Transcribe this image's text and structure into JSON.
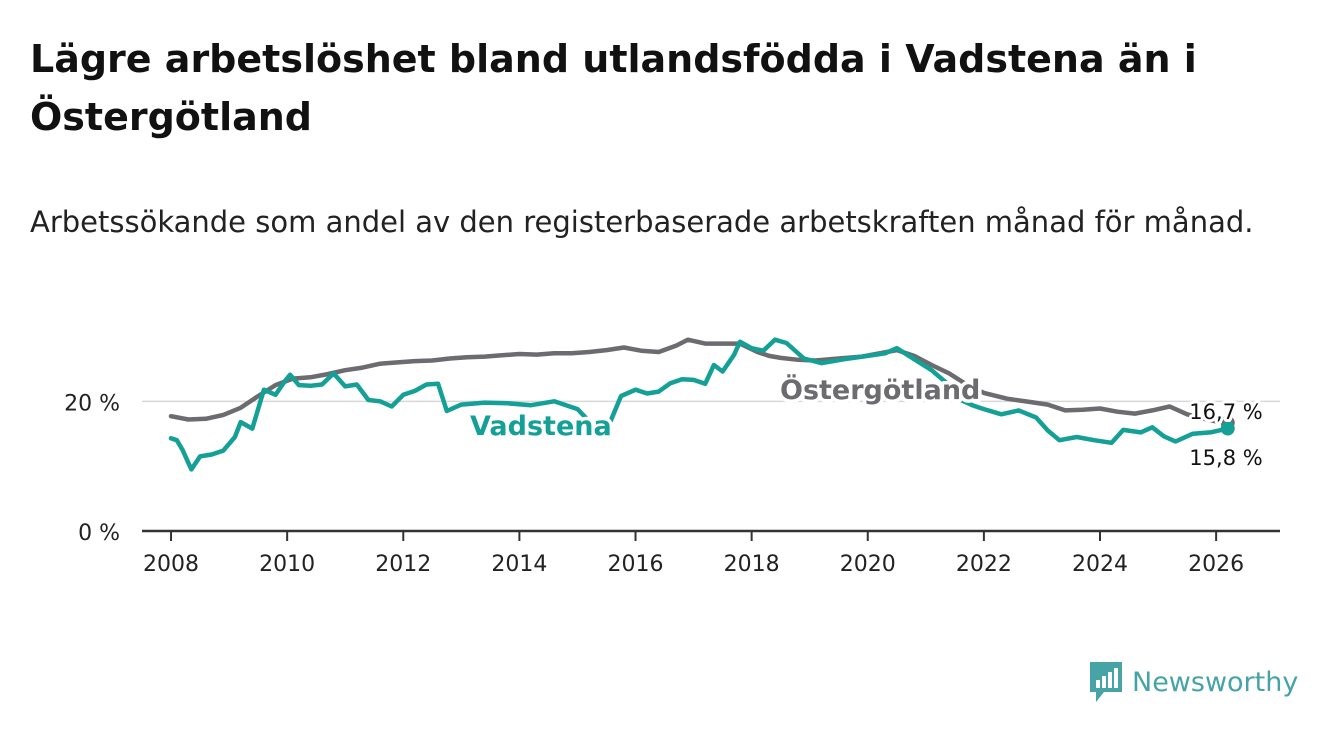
{
  "title": "Lägre arbetslöshet bland utlandsfödda i Vadstena än i Östergötland",
  "subtitle": "Arbetssökande som andel av den registerbaserade arbetskraften månad för månad.",
  "brand": {
    "name": "Newsworthy",
    "icon": "newsworthy-logo-icon"
  },
  "colors": {
    "vadstena": "#14a097",
    "ostergotland": "#6b6b70",
    "grid": "#d8d8d8",
    "axis": "#333333"
  },
  "chart_data": {
    "type": "line",
    "title": "Lägre arbetslöshet bland utlandsfödda i Vadstena än i Östergötland",
    "xlabel": "",
    "ylabel": "",
    "xlim": [
      2007.5,
      2027.1
    ],
    "ylim": [
      0,
      31
    ],
    "x_ticks": [
      {
        "value": 2008,
        "label": "2008"
      },
      {
        "value": 2010,
        "label": "2010"
      },
      {
        "value": 2012,
        "label": "2012"
      },
      {
        "value": 2014,
        "label": "2014"
      },
      {
        "value": 2016,
        "label": "2016"
      },
      {
        "value": 2018,
        "label": "2018"
      },
      {
        "value": 2020,
        "label": "2020"
      },
      {
        "value": 2022,
        "label": "2022"
      },
      {
        "value": 2024,
        "label": "2024"
      },
      {
        "value": 2026,
        "label": "2026"
      }
    ],
    "y_ticks": [
      {
        "value": 0,
        "label": "0 %"
      },
      {
        "value": 20,
        "label": "20 %"
      }
    ],
    "grid": true,
    "series": [
      {
        "name": "Östergötland",
        "label": "Östergötland",
        "end_label": "16,7 %",
        "points": [
          [
            2008.0,
            17.7
          ],
          [
            2008.3,
            17.2
          ],
          [
            2008.6,
            17.3
          ],
          [
            2008.9,
            17.9
          ],
          [
            2009.2,
            19.0
          ],
          [
            2009.5,
            20.8
          ],
          [
            2009.8,
            22.5
          ],
          [
            2010.1,
            23.5
          ],
          [
            2010.4,
            23.7
          ],
          [
            2010.7,
            24.2
          ],
          [
            2011.0,
            24.8
          ],
          [
            2011.3,
            25.2
          ],
          [
            2011.6,
            25.8
          ],
          [
            2011.9,
            26.0
          ],
          [
            2012.2,
            26.2
          ],
          [
            2012.5,
            26.3
          ],
          [
            2012.8,
            26.6
          ],
          [
            2013.1,
            26.8
          ],
          [
            2013.4,
            26.9
          ],
          [
            2013.7,
            27.1
          ],
          [
            2014.0,
            27.3
          ],
          [
            2014.3,
            27.2
          ],
          [
            2014.6,
            27.4
          ],
          [
            2014.9,
            27.4
          ],
          [
            2015.2,
            27.6
          ],
          [
            2015.5,
            27.9
          ],
          [
            2015.8,
            28.3
          ],
          [
            2016.1,
            27.8
          ],
          [
            2016.4,
            27.6
          ],
          [
            2016.7,
            28.6
          ],
          [
            2016.9,
            29.5
          ],
          [
            2017.2,
            28.9
          ],
          [
            2017.5,
            28.9
          ],
          [
            2017.8,
            28.9
          ],
          [
            2018.1,
            27.6
          ],
          [
            2018.3,
            27.0
          ],
          [
            2018.5,
            26.7
          ],
          [
            2018.8,
            26.4
          ],
          [
            2019.1,
            26.3
          ],
          [
            2019.5,
            26.6
          ],
          [
            2019.9,
            26.9
          ],
          [
            2020.2,
            27.4
          ],
          [
            2020.5,
            27.9
          ],
          [
            2020.8,
            27.0
          ],
          [
            2021.1,
            25.6
          ],
          [
            2021.4,
            24.3
          ],
          [
            2021.7,
            22.6
          ],
          [
            2022.0,
            21.3
          ],
          [
            2022.4,
            20.4
          ],
          [
            2022.8,
            19.9
          ],
          [
            2023.1,
            19.5
          ],
          [
            2023.4,
            18.6
          ],
          [
            2023.7,
            18.7
          ],
          [
            2024.0,
            18.9
          ],
          [
            2024.3,
            18.4
          ],
          [
            2024.6,
            18.1
          ],
          [
            2024.9,
            18.6
          ],
          [
            2025.2,
            19.2
          ],
          [
            2025.5,
            18.0
          ],
          [
            2025.8,
            17.3
          ],
          [
            2026.0,
            16.9
          ],
          [
            2026.2,
            16.7
          ]
        ]
      },
      {
        "name": "Vadstena",
        "label": "Vadstena",
        "end_label": "15,8 %",
        "points": [
          [
            2008.0,
            14.3
          ],
          [
            2008.1,
            14.0
          ],
          [
            2008.2,
            12.5
          ],
          [
            2008.3,
            10.5
          ],
          [
            2008.35,
            9.5
          ],
          [
            2008.5,
            11.5
          ],
          [
            2008.7,
            11.8
          ],
          [
            2008.9,
            12.4
          ],
          [
            2009.1,
            14.5
          ],
          [
            2009.2,
            16.8
          ],
          [
            2009.4,
            15.8
          ],
          [
            2009.6,
            21.8
          ],
          [
            2009.8,
            21.0
          ],
          [
            2009.95,
            23.0
          ],
          [
            2010.05,
            24.1
          ],
          [
            2010.2,
            22.5
          ],
          [
            2010.4,
            22.4
          ],
          [
            2010.6,
            22.6
          ],
          [
            2010.8,
            24.3
          ],
          [
            2011.0,
            22.3
          ],
          [
            2011.2,
            22.6
          ],
          [
            2011.4,
            20.2
          ],
          [
            2011.6,
            20.0
          ],
          [
            2011.8,
            19.2
          ],
          [
            2012.0,
            21.0
          ],
          [
            2012.2,
            21.6
          ],
          [
            2012.4,
            22.6
          ],
          [
            2012.6,
            22.7
          ],
          [
            2012.75,
            18.5
          ],
          [
            2013.0,
            19.5
          ],
          [
            2013.4,
            19.8
          ],
          [
            2013.8,
            19.7
          ],
          [
            2014.2,
            19.4
          ],
          [
            2014.6,
            20.0
          ],
          [
            2015.0,
            18.8
          ],
          [
            2015.3,
            16.0
          ],
          [
            2015.4,
            15.0
          ],
          [
            2015.55,
            16.5
          ],
          [
            2015.75,
            20.8
          ],
          [
            2016.0,
            21.8
          ],
          [
            2016.2,
            21.2
          ],
          [
            2016.4,
            21.5
          ],
          [
            2016.6,
            22.8
          ],
          [
            2016.8,
            23.4
          ],
          [
            2017.0,
            23.3
          ],
          [
            2017.2,
            22.7
          ],
          [
            2017.35,
            25.6
          ],
          [
            2017.5,
            24.6
          ],
          [
            2017.7,
            27.2
          ],
          [
            2017.8,
            29.2
          ],
          [
            2018.0,
            28.2
          ],
          [
            2018.2,
            27.8
          ],
          [
            2018.4,
            29.5
          ],
          [
            2018.6,
            29.0
          ],
          [
            2018.9,
            26.6
          ],
          [
            2019.2,
            25.9
          ],
          [
            2019.6,
            26.5
          ],
          [
            2020.0,
            27.0
          ],
          [
            2020.3,
            27.4
          ],
          [
            2020.5,
            28.2
          ],
          [
            2020.8,
            26.5
          ],
          [
            2021.1,
            24.8
          ],
          [
            2021.4,
            22.5
          ],
          [
            2021.6,
            20.2
          ],
          [
            2021.8,
            19.4
          ],
          [
            2022.0,
            18.8
          ],
          [
            2022.3,
            18.0
          ],
          [
            2022.6,
            18.6
          ],
          [
            2022.9,
            17.5
          ],
          [
            2023.1,
            15.5
          ],
          [
            2023.3,
            14.0
          ],
          [
            2023.6,
            14.5
          ],
          [
            2023.9,
            14.0
          ],
          [
            2024.2,
            13.6
          ],
          [
            2024.4,
            15.6
          ],
          [
            2024.7,
            15.2
          ],
          [
            2024.9,
            16.0
          ],
          [
            2025.1,
            14.6
          ],
          [
            2025.3,
            13.8
          ],
          [
            2025.6,
            15.0
          ],
          [
            2025.9,
            15.2
          ],
          [
            2026.2,
            15.8
          ]
        ]
      }
    ]
  }
}
